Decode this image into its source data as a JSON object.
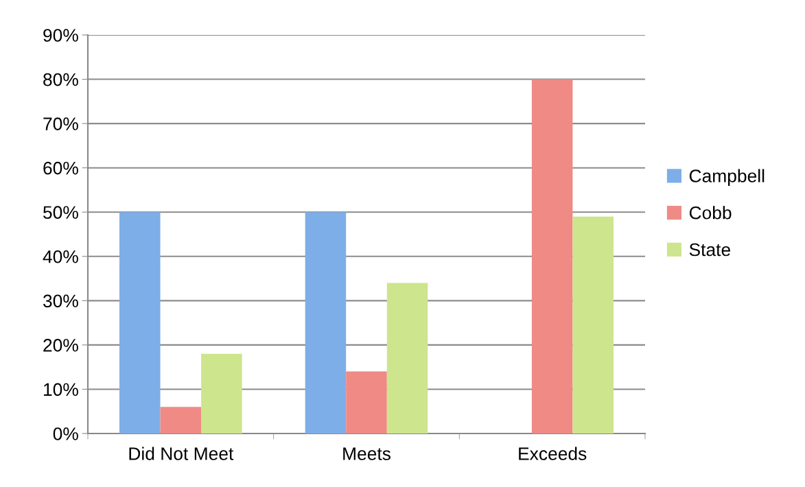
{
  "chart_data": {
    "type": "bar",
    "categories": [
      "Did Not Meet",
      "Meets",
      "Exceeds"
    ],
    "series": [
      {
        "name": "Campbell",
        "color": "#7eaee8",
        "values": [
          50,
          50,
          0
        ]
      },
      {
        "name": "Cobb",
        "color": "#ef8a85",
        "values": [
          6,
          14,
          80
        ]
      },
      {
        "name": "State",
        "color": "#cde58d",
        "values": [
          18,
          34,
          49
        ]
      }
    ],
    "ylim": [
      0,
      90
    ],
    "yticks": [
      {
        "value": 0,
        "label": "0%"
      },
      {
        "value": 10,
        "label": "10%"
      },
      {
        "value": 20,
        "label": "20%"
      },
      {
        "value": 30,
        "label": "30%"
      },
      {
        "value": 40,
        "label": "40%"
      },
      {
        "value": 50,
        "label": "50%"
      },
      {
        "value": 60,
        "label": "60%"
      },
      {
        "value": 70,
        "label": "70%"
      },
      {
        "value": 80,
        "label": "80%"
      },
      {
        "value": 90,
        "label": "90%"
      }
    ],
    "grid": "y",
    "legend": "right"
  }
}
